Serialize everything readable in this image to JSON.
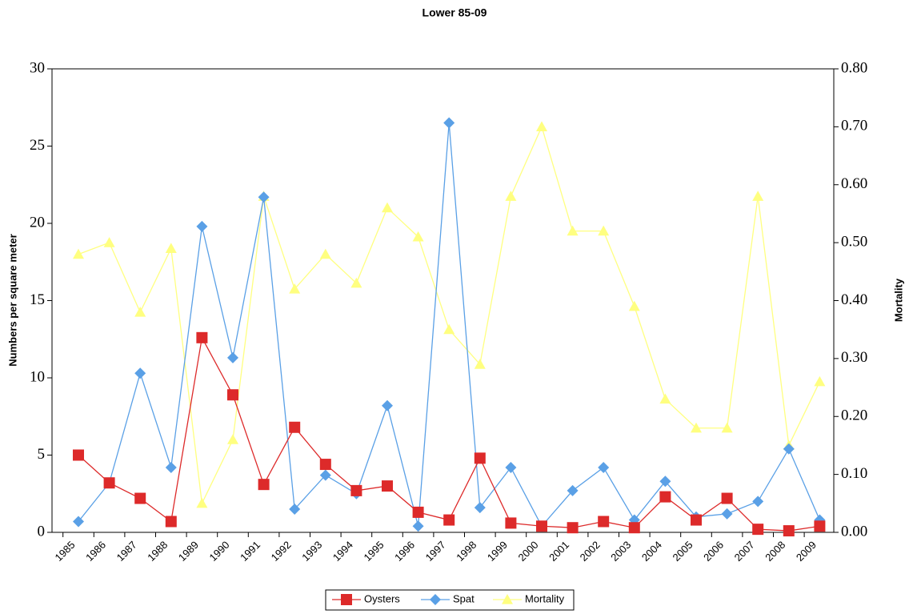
{
  "chart_data": {
    "type": "line",
    "title": "Lower 85-09",
    "y_label": "Numbers per square meter",
    "y2_label": "Mortality",
    "categories": [
      "1985",
      "1986",
      "1987",
      "1988",
      "1989",
      "1990",
      "1991",
      "1992",
      "1993",
      "1994",
      "1995",
      "1996",
      "1997",
      "1998",
      "1999",
      "2000",
      "2001",
      "2002",
      "2003",
      "2004",
      "2005",
      "2006",
      "2007",
      "2008",
      "2009"
    ],
    "series": [
      {
        "name": "Oysters",
        "color": "#dd2a2a",
        "marker": "square",
        "values": [
          5.0,
          3.2,
          2.2,
          0.7,
          12.6,
          8.9,
          3.1,
          6.8,
          4.4,
          2.7,
          3.0,
          1.3,
          0.8,
          4.8,
          0.6,
          0.4,
          0.3,
          0.7,
          0.3,
          2.3,
          0.8,
          2.2,
          0.2,
          0.1,
          0.4
        ]
      },
      {
        "name": "Spat",
        "color": "#5aa0e6",
        "marker": "diamond",
        "values": [
          0.7,
          3.2,
          10.3,
          4.2,
          19.8,
          11.3,
          21.7,
          1.5,
          3.7,
          2.5,
          8.2,
          0.4,
          26.5,
          1.6,
          4.2,
          0.4,
          2.7,
          4.2,
          0.8,
          3.3,
          1.0,
          1.2,
          2.0,
          5.4,
          0.8
        ]
      },
      {
        "name": "Mortality",
        "color": "#ffff80",
        "marker": "triangle",
        "axis": "y2",
        "values": [
          0.48,
          0.5,
          0.38,
          0.49,
          0.05,
          0.16,
          0.58,
          0.42,
          0.48,
          0.43,
          0.56,
          0.51,
          0.35,
          0.29,
          0.58,
          0.7,
          0.52,
          0.52,
          0.39,
          0.23,
          0.18,
          0.18,
          0.58,
          0.15,
          0.26
        ]
      }
    ],
    "ylim": [
      0,
      30
    ],
    "yticks": [
      0,
      5,
      10,
      15,
      20,
      25,
      30
    ],
    "y2lim": [
      0,
      0.8
    ],
    "y2ticks": [
      {
        "value": 0,
        "label": "0.00"
      },
      {
        "value": 0.1,
        "label": "0.10"
      },
      {
        "value": 0.2,
        "label": "0.20"
      },
      {
        "value": 0.3,
        "label": "0.30"
      },
      {
        "value": 0.4,
        "label": "0.40"
      },
      {
        "value": 0.5,
        "label": "0.50"
      },
      {
        "value": 0.6,
        "label": "0.60"
      },
      {
        "value": 0.7,
        "label": "0.70"
      },
      {
        "value": 0.8,
        "label": "0.80"
      }
    ],
    "legend": "bottom",
    "grid": false
  }
}
